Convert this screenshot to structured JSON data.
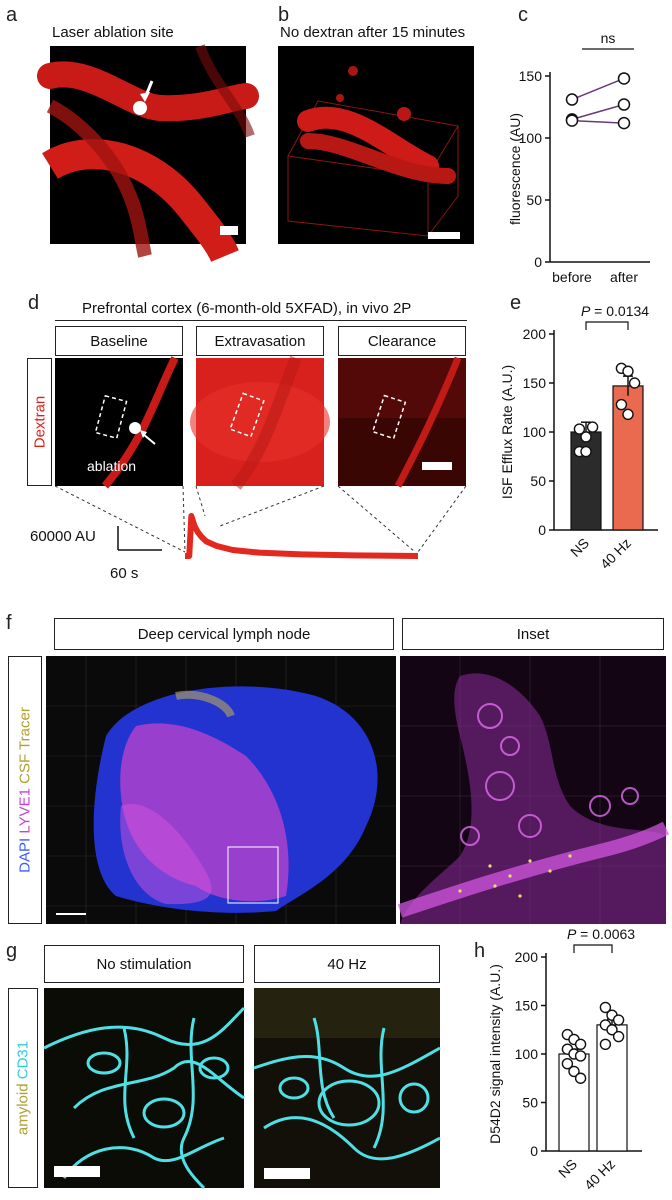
{
  "panels": {
    "a": {
      "letter": "a",
      "title": "Laser ablation site"
    },
    "b": {
      "letter": "b",
      "title": "No dextran after 15 minutes"
    },
    "c": {
      "letter": "c"
    },
    "d": {
      "letter": "d",
      "title": "Prefrontal cortex (6-month-old 5XFAD), in vivo 2P",
      "sub": [
        "Baseline",
        "Extravasation",
        "Clearance"
      ],
      "side_label": "Dextran",
      "ablation_label": "ablation",
      "scale_y": "60000 AU",
      "scale_x": "60 s"
    },
    "e": {
      "letter": "e"
    },
    "f": {
      "letter": "f",
      "sub": [
        "Deep cervical lymph node",
        "Inset"
      ],
      "side_label": {
        "dapi": "DAPI",
        "lyve1": "LYVE1",
        "csf": "CSF Tracer"
      }
    },
    "g": {
      "letter": "g",
      "sub": [
        "No stimulation",
        "40 Hz"
      ],
      "side_label": {
        "amyloid": "amyloid",
        "cd31": "CD31"
      }
    },
    "h": {
      "letter": "h"
    }
  },
  "colors": {
    "dextran_red": "#e0201c",
    "bar_dark": "#2b2b2b",
    "bar_orange": "#e96a4f",
    "line_purple": "#6a3a7a",
    "dapi_blue": "#2a3bd8",
    "lyve_magenta": "#c443d6",
    "cd31_cyan": "#4fe0e6"
  },
  "chart_data": [
    {
      "id": "c",
      "type": "line",
      "categories": [
        "before",
        "after"
      ],
      "ylabel": "fluorescence (AU)",
      "ylim": [
        0,
        150
      ],
      "yticks": [
        0,
        50,
        100,
        150
      ],
      "series": [
        {
          "values": [
            131,
            148
          ]
        },
        {
          "values": [
            115,
            127
          ]
        },
        {
          "values": [
            114,
            112
          ]
        }
      ],
      "annotation": "ns"
    },
    {
      "id": "e",
      "type": "bar",
      "categories": [
        "NS",
        "40 Hz"
      ],
      "values": [
        100,
        147
      ],
      "errors": [
        10,
        10
      ],
      "points": [
        [
          103,
          95,
          105,
          80,
          80
        ],
        [
          165,
          162,
          150,
          128,
          118
        ]
      ],
      "ylabel": "ISF Efflux Rate (A.U.)",
      "ylim": [
        0,
        200
      ],
      "yticks": [
        0,
        50,
        100,
        150,
        200
      ],
      "annotation": "P = 0.0134"
    },
    {
      "id": "h",
      "type": "bar",
      "categories": [
        "NS",
        "40 Hz"
      ],
      "values": [
        100,
        130
      ],
      "errors": [
        5,
        6
      ],
      "points": [
        [
          120,
          115,
          110,
          105,
          100,
          98,
          90,
          82,
          75
        ],
        [
          148,
          140,
          135,
          130,
          125,
          118,
          110
        ]
      ],
      "ylabel": "D54D2 signal intensity (A.U.)",
      "ylim": [
        0,
        200
      ],
      "yticks": [
        0,
        50,
        100,
        150,
        200
      ],
      "annotation": "P = 0.0063"
    },
    {
      "id": "d-trace",
      "type": "line",
      "x": [
        0,
        4,
        6,
        9,
        12,
        16,
        20,
        30,
        45,
        70,
        110,
        160,
        220
      ],
      "values": [
        0,
        0,
        60000,
        45000,
        36000,
        28000,
        22000,
        15000,
        9000,
        5000,
        2500,
        1000,
        0
      ]
    }
  ]
}
